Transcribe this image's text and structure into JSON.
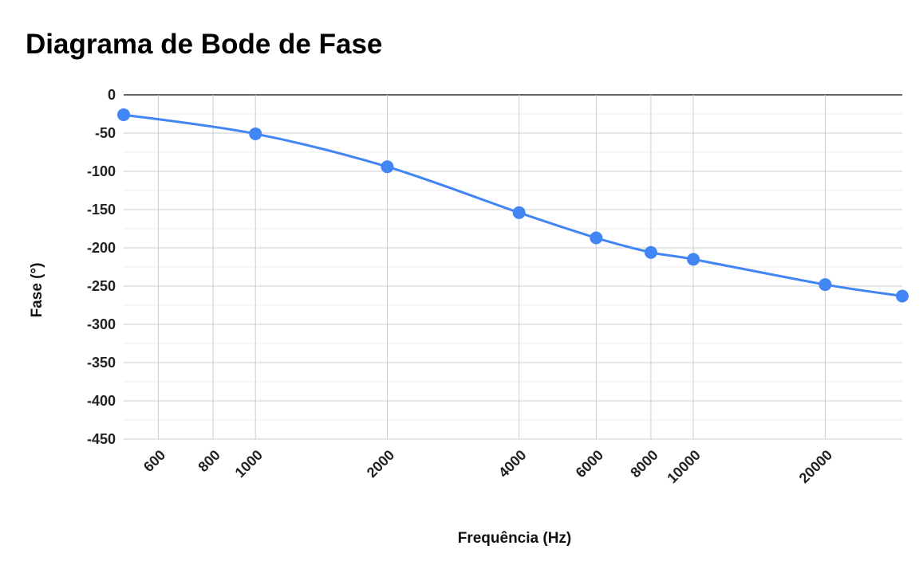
{
  "chart_data": {
    "type": "line",
    "title": "Diagrama de Bode de Fase",
    "xlabel": "Frequência (Hz)",
    "ylabel": "Fase (°)",
    "x_scale": "log",
    "xlim": [
      500,
      30000
    ],
    "ylim": [
      -450,
      0
    ],
    "x_ticks": [
      600,
      800,
      1000,
      2000,
      4000,
      6000,
      8000,
      10000,
      20000
    ],
    "x_tick_labels": [
      "600",
      "800",
      "1000",
      "2000",
      "4000",
      "6000",
      "8000",
      "10000",
      "20000"
    ],
    "y_ticks": [
      0,
      -50,
      -100,
      -150,
      -200,
      -250,
      -300,
      -350,
      -400,
      -450
    ],
    "y_tick_labels": [
      "0",
      "-50",
      "-100",
      "-150",
      "-200",
      "-250",
      "-300",
      "-350",
      "-400",
      "-450"
    ],
    "grid": true,
    "legend": "none",
    "series": [
      {
        "color": "#4285f4",
        "x": [
          500,
          1000,
          2000,
          4000,
          6000,
          8000,
          10000,
          20000,
          30000
        ],
        "y": [
          -26,
          -51,
          -94,
          -154,
          -187,
          -206,
          -215,
          -248,
          -263
        ]
      }
    ]
  }
}
